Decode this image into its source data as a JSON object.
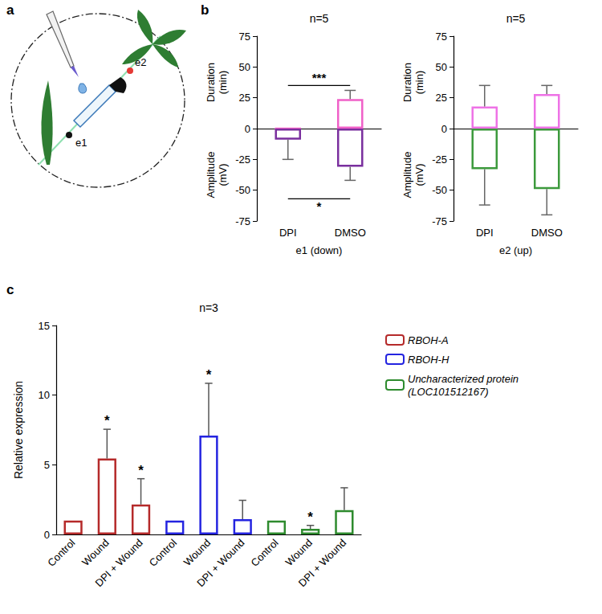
{
  "diagram": {
    "panel": "a",
    "labels": [
      "e1",
      "e2"
    ]
  },
  "chart_data": [
    {
      "panel": "b",
      "type": "bar",
      "title": "n=5",
      "x_label": "e1 (down)",
      "categories": [
        "DPI",
        "DMSO"
      ],
      "ylim": [
        -75,
        75
      ],
      "yticks": [
        -75,
        -50,
        -25,
        0,
        25,
        50,
        75
      ],
      "grid": false,
      "series": [
        {
          "name": "Duration (min)",
          "color": "#f060c8",
          "values": [
            0,
            24
          ],
          "errors": [
            null,
            7
          ]
        },
        {
          "name": "Amplitude (mV)",
          "color": "#7a2f9e",
          "values": [
            -9,
            -31
          ],
          "errors": [
            16,
            11
          ]
        }
      ],
      "annotations": [
        {
          "text": "***",
          "y": 35
        },
        {
          "text": "*",
          "y": -57
        }
      ]
    },
    {
      "panel": "b",
      "type": "bar",
      "title": "n=5",
      "x_label": "e2 (up)",
      "categories": [
        "DPI",
        "DMSO"
      ],
      "ylim": [
        -75,
        75
      ],
      "yticks": [
        -75,
        -50,
        -25,
        0,
        25,
        50,
        75
      ],
      "grid": false,
      "series": [
        {
          "name": "Duration (min)",
          "color": "#ee72e6",
          "values": [
            18,
            28
          ],
          "errors": [
            17,
            7
          ]
        },
        {
          "name": "Amplitude (mV)",
          "color": "#3c9a3c",
          "values": [
            -33,
            -49
          ],
          "errors": [
            29,
            21
          ]
        }
      ]
    },
    {
      "panel": "c",
      "type": "bar",
      "title": "n=3",
      "y_label": "Relative expression",
      "categories": [
        "Control",
        "Wound",
        "DPI + Wound",
        "Control",
        "Wound",
        "DPI + Wound",
        "Control",
        "Wound",
        "DPI + Wound"
      ],
      "ylim": [
        0,
        15
      ],
      "yticks": [
        0,
        5,
        10,
        15
      ],
      "grid": false,
      "legend": "right",
      "series": [
        {
          "name": "RBOH-A",
          "color": "#b52a2a",
          "values": [
            1,
            5.45,
            2.15,
            null,
            null,
            null,
            null,
            null,
            null
          ],
          "errors": [
            null,
            2.1,
            1.85,
            null,
            null,
            null,
            null,
            null,
            null
          ]
        },
        {
          "name": "RBOH-H",
          "color": "#2424e0",
          "values": [
            null,
            null,
            null,
            1,
            7.1,
            1.1,
            null,
            null,
            null
          ],
          "errors": [
            null,
            null,
            null,
            null,
            3.75,
            1.35,
            null,
            null,
            null
          ]
        },
        {
          "name": "Uncharacterized protein (LOC101512167)",
          "color": "#2e8b2e",
          "values": [
            null,
            null,
            null,
            null,
            null,
            null,
            1,
            0.4,
            1.75
          ],
          "errors": [
            null,
            null,
            null,
            null,
            null,
            null,
            null,
            0.25,
            1.6
          ]
        }
      ],
      "annotations": [
        {
          "text": "*",
          "x": 1,
          "series": "RBOH-A"
        },
        {
          "text": "*",
          "x": 2,
          "series": "RBOH-A"
        },
        {
          "text": "*",
          "x": 4,
          "series": "RBOH-H"
        },
        {
          "text": "*",
          "x": 7,
          "series": "Uncharacterized protein (LOC101512167)"
        }
      ]
    }
  ]
}
